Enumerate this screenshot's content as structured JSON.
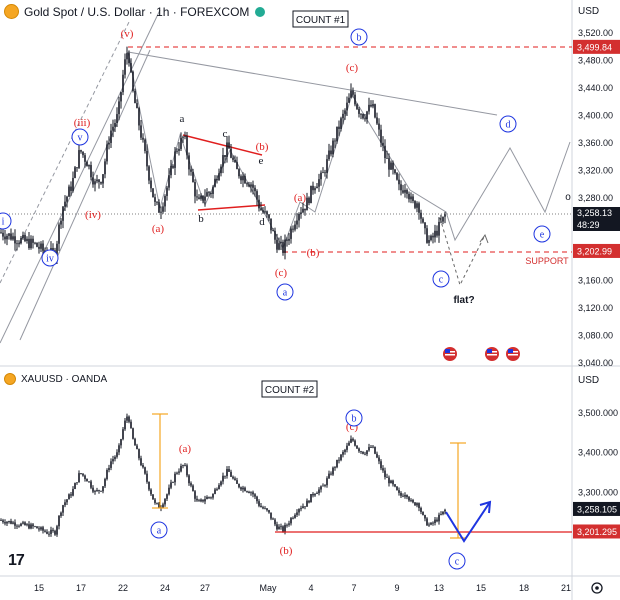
{
  "colors": {
    "candle": "#131722",
    "wave_blue": "#1e35e0",
    "wave_red": "#e01e1e",
    "resistance": "#e01e1e",
    "projection": "#aab0bb",
    "support_line": "#e01e1e",
    "orange": "#f5a623",
    "price_tag_red": "#d32f2f",
    "price_tag_black": "#131722",
    "axis_text": "#131722",
    "trend_gray": "#9598a1"
  },
  "top_panel": {
    "symbol": "Gold Spot / U.S. Dollar",
    "interval": "1h",
    "source": "FOREXCOM",
    "currency": "USD",
    "count_label": "COUNT #1",
    "support_label": "SUPPORT",
    "flat_label": "flat?",
    "y_ticks": [
      "3,520.00",
      "3,480.00",
      "3,440.00",
      "3,400.00",
      "3,360.00",
      "3,320.00",
      "3,280.00",
      "3,240.00",
      "3,200.00",
      "3,160.00",
      "3,120.00",
      "3,080.00",
      "3,040.00"
    ],
    "resistance_tag": "3,499.84",
    "last_price_tag": "3,258.13",
    "countdown_tag": "48:29",
    "support_tag": "3,202.99",
    "wave_labels": {
      "i": "i",
      "ii": "ii",
      "iii": "(iii)",
      "iv": "(iv)",
      "v_red": "(v)",
      "v_blue": "v",
      "iv_blue": "iv",
      "a_red": "(a)",
      "a_lower": "a",
      "b_lower": "b",
      "c_lower": "c",
      "d_lower": "d",
      "e_lower": "e",
      "b_red": "(b)",
      "c_red": "(c)",
      "a_circle": "a",
      "a2_red": "(a)",
      "b2_red": "(b)",
      "c2_red": "(c)",
      "b_circle": "b",
      "c_circle": "c",
      "d_circle": "d",
      "e_circle": "e",
      "o_label": "o"
    }
  },
  "bottom_panel": {
    "symbol": "XAUUSD",
    "source": "OANDA",
    "currency": "USD",
    "count_label": "COUNT #2",
    "y_ticks": [
      "3,500.000",
      "3,400.000",
      "3,300.000",
      "3,200.000"
    ],
    "last_price_tag": "3,258.105",
    "support_tag": "3,201.295",
    "wave_labels": {
      "a_red": "(a)",
      "b_red": "(b)",
      "c_red": "(c)",
      "a_circle": "a",
      "b_circle": "b",
      "c_circle": "c"
    }
  },
  "x_axis": {
    "labels": [
      "15",
      "17",
      "22",
      "24",
      "27",
      "May",
      "4",
      "7",
      "9",
      "13",
      "15",
      "18",
      "21"
    ]
  },
  "chart_data": [
    {
      "type": "line",
      "title": "Gold Spot / U.S. Dollar · 1h · FOREXCOM",
      "xlabel": "",
      "ylabel": "USD",
      "ylim": [
        3030,
        3540
      ],
      "x": [
        "Apr 15",
        "Apr 17",
        "Apr 22",
        "Apr 24",
        "Apr 27",
        "May 1",
        "May 4",
        "May 7",
        "May 9",
        "May 13"
      ],
      "series": [
        {
          "name": "",
          "values": [
            3230,
            3340,
            3499,
            3280,
            3310,
            3210,
            3300,
            3435,
            3380,
            3258
          ]
        }
      ],
      "annotations": {
        "resistance": 3499.84,
        "support": 3202.99,
        "last_price": 3258.13
      }
    },
    {
      "type": "line",
      "title": "XAUUSD · OANDA",
      "xlabel": "",
      "ylabel": "USD",
      "ylim": [
        3180,
        3540
      ],
      "x": [
        "Apr 15",
        "Apr 17",
        "Apr 22",
        "Apr 24",
        "Apr 27",
        "May 1",
        "May 4",
        "May 7",
        "May 9",
        "May 13"
      ],
      "series": [
        {
          "name": "",
          "values": [
            3230,
            3340,
            3499,
            3280,
            3310,
            3210,
            3300,
            3435,
            3380,
            3258
          ]
        }
      ],
      "annotations": {
        "support": 3201.295,
        "last_price": 3258.105
      }
    }
  ]
}
